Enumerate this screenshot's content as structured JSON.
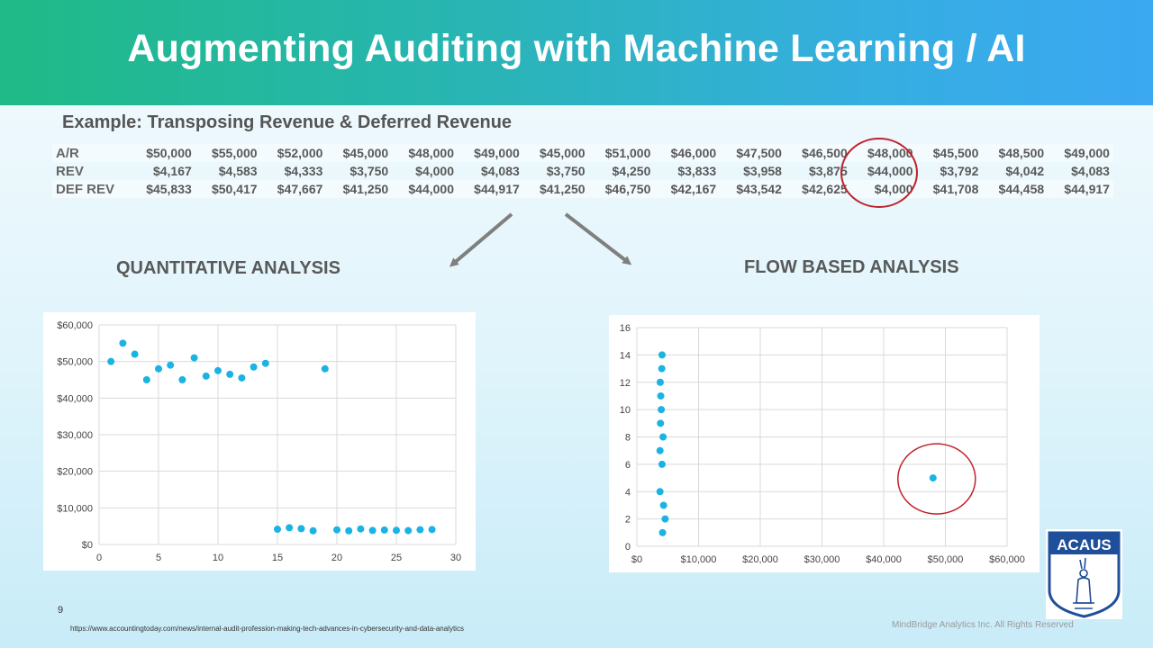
{
  "slide": {
    "title": "Augmenting Auditing with Machine Learning / AI",
    "subtitle": "Example: Transposing Revenue & Deferred Revenue",
    "left_heading": "QUANTITATIVE ANALYSIS",
    "right_heading": "FLOW BASED ANALYSIS",
    "page_number": "9",
    "source_url": "https://www.accountingtoday.com/news/internal-audit-profession-making-tech-advances-in-cybersecurity-and-data-analytics",
    "copyright": "MindBridge Analytics Inc. All Rights Reserved",
    "logo_text": "ACAUS"
  },
  "ledger": {
    "rows": [
      {
        "label": "A/R",
        "values": [
          "$50,000",
          "$55,000",
          "$52,000",
          "$45,000",
          "$48,000",
          "$49,000",
          "$45,000",
          "$51,000",
          "$46,000",
          "$47,500",
          "$46,500",
          "$48,000",
          "$45,500",
          "$48,500",
          "$49,000"
        ]
      },
      {
        "label": "REV",
        "values": [
          "$4,167",
          "$4,583",
          "$4,333",
          "$3,750",
          "$4,000",
          "$4,083",
          "$3,750",
          "$4,250",
          "$3,833",
          "$3,958",
          "$3,875",
          "$44,000",
          "$3,792",
          "$4,042",
          "$4,083"
        ]
      },
      {
        "label": "DEF REV",
        "values": [
          "$45,833",
          "$50,417",
          "$47,667",
          "$41,250",
          "$44,000",
          "$44,917",
          "$41,250",
          "$46,750",
          "$42,167",
          "$43,542",
          "$42,625",
          "$4,000",
          "$41,708",
          "$44,458",
          "$44,917"
        ]
      }
    ],
    "highlight_column": 11
  },
  "colors": {
    "marker": "#1ab3e3",
    "circle": "#c0212a",
    "arrow": "#7f7f7f",
    "grid": "#d9d9d9"
  },
  "chart_data": [
    {
      "type": "scatter",
      "title": "",
      "xlabel": "",
      "ylabel": "",
      "xlim": [
        0,
        30
      ],
      "ylim": [
        0,
        60000
      ],
      "xticks": [
        0,
        5,
        10,
        15,
        20,
        25,
        30
      ],
      "xtick_labels": [
        "0",
        "5",
        "10",
        "15",
        "20",
        "25",
        "30"
      ],
      "yticks": [
        0,
        10000,
        20000,
        30000,
        40000,
        50000,
        60000
      ],
      "ytick_labels": [
        "$0",
        "$10,000",
        "$20,000",
        "$30,000",
        "$40,000",
        "$50,000",
        "$60,000"
      ],
      "grid": true,
      "points": [
        {
          "x": 1,
          "y": 50000
        },
        {
          "x": 2,
          "y": 55000
        },
        {
          "x": 3,
          "y": 52000
        },
        {
          "x": 4,
          "y": 45000
        },
        {
          "x": 5,
          "y": 48000
        },
        {
          "x": 6,
          "y": 49000
        },
        {
          "x": 7,
          "y": 45000
        },
        {
          "x": 8,
          "y": 51000
        },
        {
          "x": 9,
          "y": 46000
        },
        {
          "x": 10,
          "y": 47500
        },
        {
          "x": 11,
          "y": 46500
        },
        {
          "x": 12,
          "y": 45500
        },
        {
          "x": 13,
          "y": 48500
        },
        {
          "x": 14,
          "y": 49500
        },
        {
          "x": 19,
          "y": 48000
        },
        {
          "x": 15,
          "y": 4167
        },
        {
          "x": 16,
          "y": 4583
        },
        {
          "x": 17,
          "y": 4333
        },
        {
          "x": 18,
          "y": 3750
        },
        {
          "x": 20,
          "y": 4000
        },
        {
          "x": 21,
          "y": 3750
        },
        {
          "x": 22,
          "y": 4250
        },
        {
          "x": 23,
          "y": 3833
        },
        {
          "x": 24,
          "y": 3958
        },
        {
          "x": 25,
          "y": 3875
        },
        {
          "x": 26,
          "y": 3792
        },
        {
          "x": 27,
          "y": 4042
        },
        {
          "x": 28,
          "y": 4083
        }
      ]
    },
    {
      "type": "scatter",
      "title": "",
      "xlabel": "",
      "ylabel": "",
      "xlim": [
        0,
        60000
      ],
      "ylim": [
        0,
        16
      ],
      "xticks": [
        0,
        10000,
        20000,
        30000,
        40000,
        50000,
        60000
      ],
      "xtick_labels": [
        "$0",
        "$10,000",
        "$20,000",
        "$30,000",
        "$40,000",
        "$50,000",
        "$60,000"
      ],
      "yticks": [
        0,
        2,
        4,
        6,
        8,
        10,
        12,
        14,
        16
      ],
      "ytick_labels": [
        "0",
        "2",
        "4",
        "6",
        "8",
        "10",
        "12",
        "14",
        "16"
      ],
      "grid": true,
      "points": [
        {
          "x": 4167,
          "y": 1
        },
        {
          "x": 4583,
          "y": 2
        },
        {
          "x": 4333,
          "y": 3
        },
        {
          "x": 3750,
          "y": 4
        },
        {
          "x": 48000,
          "y": 5
        },
        {
          "x": 4083,
          "y": 6
        },
        {
          "x": 3750,
          "y": 7
        },
        {
          "x": 4250,
          "y": 8
        },
        {
          "x": 3833,
          "y": 9
        },
        {
          "x": 3958,
          "y": 10
        },
        {
          "x": 3875,
          "y": 11
        },
        {
          "x": 3792,
          "y": 12
        },
        {
          "x": 4042,
          "y": 13
        },
        {
          "x": 4083,
          "y": 14
        }
      ],
      "highlight_point_index": 4
    }
  ]
}
